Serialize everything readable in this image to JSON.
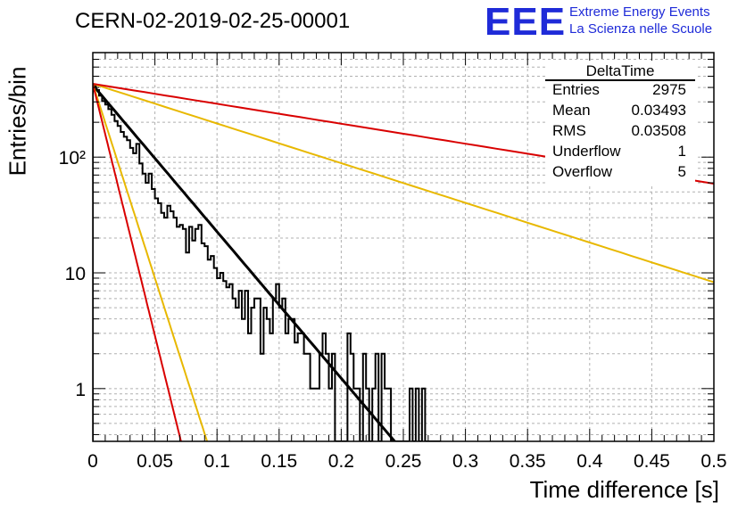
{
  "title": "CERN-02-2019-02-25-00001",
  "logo": {
    "mark": "EEE",
    "line1": "Extreme Energy Events",
    "line2": "La Scienza nelle Scuole",
    "color": "#1f2bd8"
  },
  "stats": {
    "name": "DeltaTime",
    "rows": [
      {
        "key": "Entries",
        "value": "2975"
      },
      {
        "key": "Mean",
        "value": "0.03493"
      },
      {
        "key": "RMS",
        "value": "0.03508"
      },
      {
        "key": "Underflow",
        "value": "1"
      },
      {
        "key": "Overflow",
        "value": "5"
      }
    ]
  },
  "chart_data": {
    "type": "line",
    "title": "CERN-02-2019-02-25-00001",
    "xlabel": "Time difference [s]",
    "ylabel": "Entries/bin",
    "xlim": [
      0,
      0.5
    ],
    "ylim": [
      0.35,
      800
    ],
    "yscale": "log",
    "grid": true,
    "x_ticks": [
      "0",
      "0.05",
      "0.1",
      "0.15",
      "0.2",
      "0.25",
      "0.3",
      "0.35",
      "0.4",
      "0.45",
      "0.5"
    ],
    "y_ticks": [
      {
        "value": 1,
        "label": "1"
      },
      {
        "value": 10,
        "label": "10"
      },
      {
        "value": 100,
        "label": "10²"
      }
    ],
    "histogram": {
      "name": "DeltaTime",
      "color": "#000000",
      "bin_width": 0.0025,
      "bin_start": 0,
      "values": [
        412,
        380,
        340,
        305,
        285,
        260,
        232,
        205,
        186,
        165,
        150,
        140,
        120,
        108,
        130,
        88,
        72,
        60,
        72,
        53,
        44,
        40,
        33,
        30,
        38,
        34,
        30,
        25,
        26,
        24,
        15,
        25,
        19,
        24,
        26,
        18,
        17,
        13,
        14,
        11,
        9,
        10,
        8.5,
        7.5,
        8,
        6,
        5,
        7,
        4,
        7,
        3,
        5,
        6,
        6,
        2,
        5,
        4,
        3,
        6,
        8,
        5,
        6,
        3,
        4,
        4,
        2.5,
        3,
        3,
        2,
        2,
        1,
        1,
        1,
        2,
        3,
        2,
        1,
        2,
        0,
        0,
        0,
        0,
        3,
        2,
        1,
        1,
        0,
        2,
        1,
        0,
        1,
        2,
        0,
        2,
        1,
        1,
        0,
        0,
        0,
        0,
        0,
        0,
        1,
        0,
        1,
        0,
        1,
        0,
        0,
        0,
        0,
        0
      ]
    },
    "series": [
      {
        "color": "#000000",
        "type": "exponential",
        "x_range": [
          0,
          0.243
        ],
        "y0": 420,
        "y_at_end": 0.35
      },
      {
        "color": "#e8b800",
        "type": "exponential",
        "x_range": [
          0,
          0.5
        ],
        "y0": 430,
        "y_at_end": 8.3
      },
      {
        "color": "#d90000",
        "type": "exponential",
        "x_range": [
          0,
          0.5
        ],
        "y0": 430,
        "y_at_end": 59
      },
      {
        "color": "#e8b800",
        "type": "exponential",
        "x_range": [
          0,
          0.092
        ],
        "y0": 430,
        "y_at_end": 0.35
      },
      {
        "color": "#d90000",
        "type": "exponential",
        "x_range": [
          0,
          0.071
        ],
        "y0": 430,
        "y_at_end": 0.35
      }
    ]
  }
}
